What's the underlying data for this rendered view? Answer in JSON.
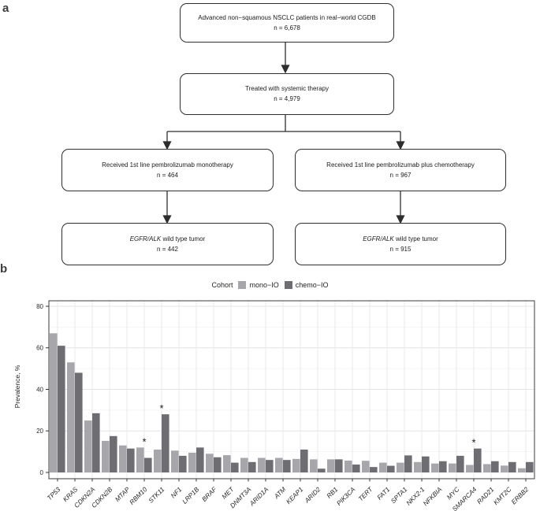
{
  "panel_a": {
    "label": "a",
    "boxes": [
      {
        "line1": "Advanced non−squamous NSCLC patients in real−world CGDB",
        "n": "n = 6,678"
      },
      {
        "line1": "Treated with systemic therapy",
        "n": "n = 4,979"
      },
      {
        "line1": "Received 1st line pembrolizumab monotherapy",
        "n": "n = 464"
      },
      {
        "line1": "Received 1st line pembrolizumab plus chemotherapy",
        "n": "n = 967"
      },
      {
        "line1_italic": "EGFR/ALK",
        "line1_rest": " wild type tumor",
        "n": "n = 442"
      },
      {
        "line1_italic": "EGFR/ALK",
        "line1_rest": " wild type tumor",
        "n": "n = 915"
      }
    ]
  },
  "panel_b": {
    "label": "b"
  },
  "chart_data": {
    "type": "bar",
    "title": "",
    "xlabel": "",
    "ylabel": "Prevalence, %",
    "ylim": [
      0,
      82.5
    ],
    "yticks": [
      0,
      20,
      40,
      60,
      80
    ],
    "grid": true,
    "legend_title": "Cohort",
    "legend_position": "top",
    "categories": [
      "TP53",
      "KRAS",
      "CDKN2A",
      "CDKN2B",
      "MTAP",
      "RBM10",
      "STK11",
      "NF1",
      "LRP1B",
      "BRAF",
      "MET",
      "DNMT3A",
      "ARID1A",
      "ATM",
      "KEAP1",
      "ARID2",
      "RB1",
      "PIK3CA",
      "TERT",
      "FAT1",
      "SPTA1",
      "NKX2-1",
      "NFKBIA",
      "MYC",
      "SMARCA4",
      "RAD21",
      "KMT2C",
      "ERBB2"
    ],
    "series": [
      {
        "name": "mono−IO",
        "color": "#a7a7ab",
        "values": [
          67,
          53,
          25,
          15.2,
          13,
          12,
          11,
          10.5,
          9.5,
          9,
          8.3,
          7,
          7,
          7,
          6.5,
          6.3,
          6.3,
          5.7,
          5.6,
          4.7,
          4.7,
          5,
          4.3,
          4.3,
          3.6,
          4,
          3.3,
          2
        ]
      },
      {
        "name": "chemo−IO",
        "color": "#6e6e72",
        "values": [
          61,
          48,
          28.5,
          17.5,
          11.5,
          7,
          28,
          8,
          12,
          7.3,
          4.7,
          5,
          6,
          6,
          11,
          1.8,
          6.3,
          3.8,
          2.6,
          3.2,
          8.2,
          7.7,
          5.4,
          8,
          11.5,
          5.4,
          5,
          5
        ]
      }
    ],
    "significant_categories": [
      "RBM10",
      "STK11",
      "SMARCA4"
    ],
    "annotation_symbol": "*"
  }
}
